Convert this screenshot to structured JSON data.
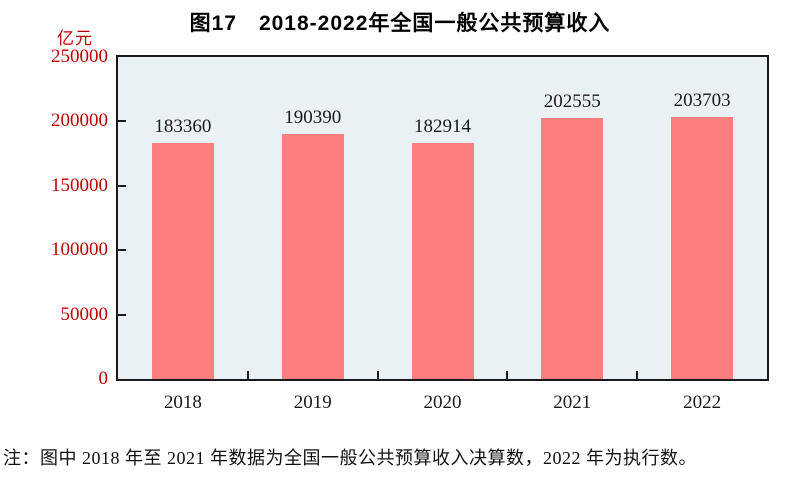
{
  "chart_data": {
    "type": "bar",
    "title": "图17　2018-2022年全国一般公共预算收入",
    "unit_label": "亿元",
    "categories": [
      "2018",
      "2019",
      "2020",
      "2021",
      "2022"
    ],
    "values": [
      183360,
      190390,
      182914,
      202555,
      203703
    ],
    "data_labels": [
      "183360",
      "190390",
      "182914",
      "202555",
      "203703"
    ],
    "ylim": [
      0,
      250000
    ],
    "yticks": [
      0,
      50000,
      100000,
      150000,
      200000,
      250000
    ],
    "ytick_labels": [
      "0",
      "50000",
      "100000",
      "150000",
      "200000",
      "250000"
    ],
    "grid": false,
    "legend": "none",
    "note": "注：图中 2018 年至 2021 年数据为全国一般公共预算收入决算数，2022 年为执行数。",
    "colors": {
      "bar": "#fa7e7e",
      "plot_background": "#eaf1f5",
      "axis_line": "#1a1a1a",
      "y_tick_label": "#c00000",
      "unit_label": "#c00000",
      "x_tick_label": "#1a1a1a",
      "data_label": "#1a1a1a",
      "title": "#000000",
      "note": "#111111"
    }
  }
}
